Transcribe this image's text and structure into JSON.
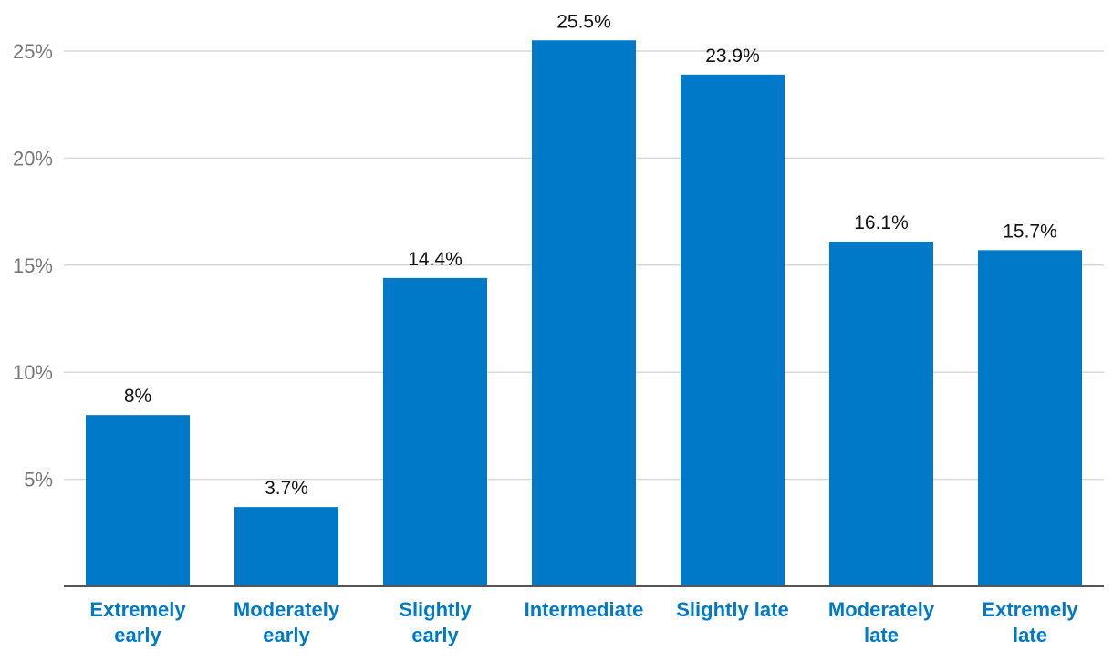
{
  "chart_data": {
    "type": "bar",
    "categories": [
      [
        "Extremely",
        "early"
      ],
      [
        "Moderately",
        "early"
      ],
      [
        "Slightly",
        "early"
      ],
      [
        "Intermediate"
      ],
      [
        "Slightly late"
      ],
      [
        "Moderately",
        "late"
      ],
      [
        "Extremely",
        "late"
      ]
    ],
    "values": [
      8,
      3.7,
      14.4,
      25.5,
      23.9,
      16.1,
      15.7
    ],
    "data_labels": [
      "8%",
      "3.7%",
      "14.4%",
      "25.5%",
      "23.9%",
      "16.1%",
      "15.7%"
    ],
    "y_ticks": [
      5,
      10,
      15,
      20,
      25
    ],
    "y_tick_labels": [
      "5%",
      "10%",
      "15%",
      "20%",
      "25%"
    ],
    "ylim": [
      0,
      25
    ],
    "grid": true,
    "legend": "none",
    "colors": {
      "bar": "#0079c8",
      "category_label": "#0079c8",
      "data_label": "#111111",
      "tick_label": "#777777",
      "gridline": "#d9d9d9",
      "baseline": "#555555"
    }
  }
}
